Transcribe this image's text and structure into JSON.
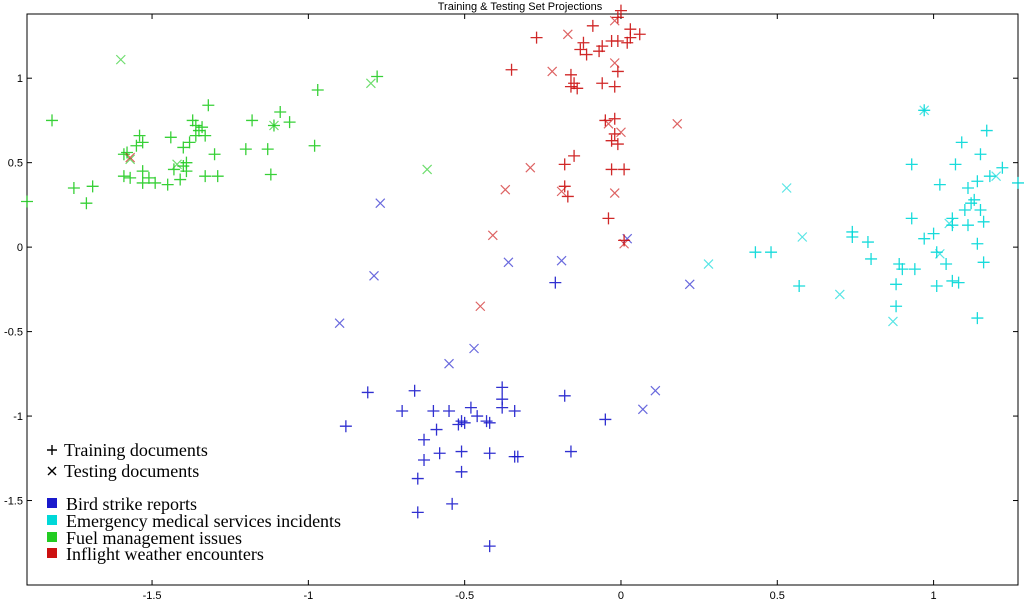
{
  "chart_data": {
    "type": "scatter",
    "title": "Training & Testing Set Projections",
    "xlim": [
      -1.9,
      1.27
    ],
    "ylim": [
      -2.0,
      1.38
    ],
    "grid": false,
    "xticks": [
      -1.5,
      -1,
      -0.5,
      0,
      0.5,
      1
    ],
    "xtick_labels": [
      "-1.5",
      "-1",
      "-0.5",
      "0",
      "0.5",
      "1"
    ],
    "yticks": [
      -1.5,
      -1,
      -0.5,
      0,
      0.5,
      1
    ],
    "ytick_labels": [
      "-1.5",
      "-1",
      "-0.5",
      "0",
      "0.5",
      "1"
    ],
    "marker_legend": [
      {
        "marker": "+",
        "label": "Training documents"
      },
      {
        "marker": "x",
        "label": "Testing documents"
      }
    ],
    "legend_placement": "bottom-left",
    "series": [
      {
        "name": "Bird strike reports",
        "color": "#1a1acc",
        "training": [
          [
            -0.42,
            -1.77
          ],
          [
            -0.65,
            -1.57
          ],
          [
            -0.54,
            -1.52
          ],
          [
            -0.65,
            -1.37
          ],
          [
            -0.51,
            -1.33
          ],
          [
            -0.63,
            -1.26
          ],
          [
            -0.58,
            -1.22
          ],
          [
            -0.51,
            -1.21
          ],
          [
            -0.42,
            -1.22
          ],
          [
            -0.33,
            -1.24
          ],
          [
            -0.34,
            -1.24
          ],
          [
            -0.16,
            -1.21
          ],
          [
            -0.63,
            -1.14
          ],
          [
            -0.59,
            -1.08
          ],
          [
            -0.52,
            -1.05
          ],
          [
            -0.5,
            -1.04
          ],
          [
            -0.43,
            -1.03
          ],
          [
            -0.88,
            -1.06
          ],
          [
            -0.7,
            -0.97
          ],
          [
            -0.6,
            -0.97
          ],
          [
            -0.55,
            -0.97
          ],
          [
            -0.48,
            -0.95
          ],
          [
            -0.38,
            -0.95
          ],
          [
            -0.34,
            -0.97
          ],
          [
            -0.18,
            -0.88
          ],
          [
            -0.05,
            -1.02
          ],
          [
            -0.81,
            -0.86
          ],
          [
            -0.66,
            -0.85
          ],
          [
            -0.38,
            -0.83
          ],
          [
            -0.38,
            -0.9
          ],
          [
            -0.21,
            -0.21
          ],
          [
            -0.51,
            -1.03
          ],
          [
            -0.42,
            -1.04
          ],
          [
            -0.46,
            -1.0
          ]
        ],
        "testing": [
          [
            -0.9,
            -0.45
          ],
          [
            -0.79,
            -0.17
          ],
          [
            -0.77,
            0.26
          ],
          [
            -0.55,
            -0.69
          ],
          [
            -0.47,
            -0.6
          ],
          [
            0.07,
            -0.96
          ],
          [
            0.11,
            -0.85
          ],
          [
            0.22,
            -0.22
          ],
          [
            0.02,
            0.05
          ],
          [
            -0.19,
            -0.08
          ],
          [
            -0.36,
            -0.09
          ]
        ]
      },
      {
        "name": "Emergency medical services incidents",
        "color": "#00d8d8",
        "training": [
          [
            0.97,
            0.81
          ],
          [
            1.09,
            0.62
          ],
          [
            1.17,
            0.69
          ],
          [
            1.15,
            0.55
          ],
          [
            1.22,
            0.47
          ],
          [
            1.27,
            0.38
          ],
          [
            1.3,
            0.28
          ],
          [
            0.93,
            0.49
          ],
          [
            1.07,
            0.49
          ],
          [
            1.02,
            0.37
          ],
          [
            1.14,
            0.39
          ],
          [
            1.18,
            0.42
          ],
          [
            1.11,
            0.35
          ],
          [
            1.12,
            0.26
          ],
          [
            1.15,
            0.22
          ],
          [
            1.16,
            0.15
          ],
          [
            1.13,
            0.28
          ],
          [
            1.1,
            0.22
          ],
          [
            1.06,
            0.17
          ],
          [
            1.06,
            0.13
          ],
          [
            1.11,
            0.13
          ],
          [
            0.93,
            0.17
          ],
          [
            0.97,
            0.05
          ],
          [
            1.0,
            0.08
          ],
          [
            1.04,
            -0.1
          ],
          [
            1.01,
            -0.03
          ],
          [
            1.06,
            -0.2
          ],
          [
            1.08,
            -0.21
          ],
          [
            1.14,
            0.02
          ],
          [
            1.16,
            -0.09
          ],
          [
            0.89,
            -0.1
          ],
          [
            0.9,
            -0.13
          ],
          [
            0.94,
            -0.13
          ],
          [
            0.88,
            -0.22
          ],
          [
            1.01,
            -0.23
          ],
          [
            0.88,
            -0.35
          ],
          [
            1.14,
            -0.42
          ],
          [
            0.79,
            0.03
          ],
          [
            0.74,
            0.06
          ],
          [
            0.74,
            0.09
          ],
          [
            0.8,
            -0.07
          ],
          [
            0.57,
            -0.23
          ],
          [
            0.48,
            -0.03
          ],
          [
            0.43,
            -0.03
          ]
        ],
        "testing": [
          [
            0.97,
            0.81
          ],
          [
            0.53,
            0.35
          ],
          [
            0.58,
            0.06
          ],
          [
            0.28,
            -0.1
          ],
          [
            0.7,
            -0.28
          ],
          [
            0.87,
            -0.44
          ],
          [
            1.02,
            -0.04
          ],
          [
            1.05,
            0.14
          ],
          [
            1.2,
            0.42
          ]
        ]
      },
      {
        "name": "Fuel management issues",
        "color": "#22cc22",
        "training": [
          [
            -1.82,
            0.75
          ],
          [
            -1.9,
            0.27
          ],
          [
            -1.75,
            0.35
          ],
          [
            -1.69,
            0.36
          ],
          [
            -1.71,
            0.26
          ],
          [
            -1.59,
            0.42
          ],
          [
            -1.58,
            0.56
          ],
          [
            -1.55,
            0.6
          ],
          [
            -1.54,
            0.66
          ],
          [
            -1.53,
            0.62
          ],
          [
            -1.57,
            0.41
          ],
          [
            -1.53,
            0.38
          ],
          [
            -1.49,
            0.38
          ],
          [
            -1.53,
            0.45
          ],
          [
            -1.51,
            0.41
          ],
          [
            -1.45,
            0.37
          ],
          [
            -1.44,
            0.65
          ],
          [
            -1.43,
            0.46
          ],
          [
            -1.4,
            0.48
          ],
          [
            -1.4,
            0.59
          ],
          [
            -1.39,
            0.5
          ],
          [
            -1.39,
            0.45
          ],
          [
            -1.41,
            0.4
          ],
          [
            -1.38,
            0.62
          ],
          [
            -1.37,
            0.75
          ],
          [
            -1.36,
            0.72
          ],
          [
            -1.36,
            0.66
          ],
          [
            -1.35,
            0.69
          ],
          [
            -1.34,
            0.71
          ],
          [
            -1.33,
            0.66
          ],
          [
            -1.32,
            0.84
          ],
          [
            -1.3,
            0.55
          ],
          [
            -1.33,
            0.42
          ],
          [
            -1.29,
            0.42
          ],
          [
            -1.2,
            0.58
          ],
          [
            -1.18,
            0.75
          ],
          [
            -1.13,
            0.58
          ],
          [
            -1.12,
            0.43
          ],
          [
            -1.11,
            0.72
          ],
          [
            -1.09,
            0.8
          ],
          [
            -1.06,
            0.74
          ],
          [
            -0.98,
            0.6
          ],
          [
            -0.97,
            0.93
          ],
          [
            -0.78,
            1.01
          ],
          [
            -1.59,
            0.55
          ]
        ],
        "testing": [
          [
            -1.6,
            1.11
          ],
          [
            -0.8,
            0.97
          ],
          [
            -0.62,
            0.46
          ],
          [
            -1.57,
            0.52
          ],
          [
            -1.42,
            0.49
          ],
          [
            -1.11,
            0.72
          ]
        ]
      },
      {
        "name": "Inflight weather encounters",
        "color": "#cc1111",
        "training": [
          [
            0.0,
            1.4
          ],
          [
            -0.01,
            1.36
          ],
          [
            -0.09,
            1.31
          ],
          [
            -0.03,
            1.22
          ],
          [
            -0.12,
            1.21
          ],
          [
            -0.13,
            1.17
          ],
          [
            -0.11,
            1.14
          ],
          [
            0.03,
            1.29
          ],
          [
            0.06,
            1.26
          ],
          [
            0.02,
            1.21
          ],
          [
            0.03,
            1.24
          ],
          [
            -0.27,
            1.24
          ],
          [
            -0.07,
            1.16
          ],
          [
            -0.06,
            1.19
          ],
          [
            -0.01,
            1.22
          ],
          [
            -0.35,
            1.05
          ],
          [
            -0.16,
            1.02
          ],
          [
            -0.15,
            0.97
          ],
          [
            -0.14,
            0.94
          ],
          [
            -0.16,
            0.95
          ],
          [
            -0.06,
            0.97
          ],
          [
            -0.02,
            0.95
          ],
          [
            -0.01,
            1.04
          ],
          [
            -0.05,
            0.75
          ],
          [
            -0.02,
            0.76
          ],
          [
            -0.03,
            0.63
          ],
          [
            -0.01,
            0.61
          ],
          [
            -0.03,
            0.46
          ],
          [
            0.01,
            0.46
          ],
          [
            -0.15,
            0.54
          ],
          [
            -0.18,
            0.49
          ],
          [
            -0.17,
            0.3
          ],
          [
            -0.18,
            0.36
          ],
          [
            -0.04,
            0.17
          ],
          [
            0.01,
            0.04
          ],
          [
            -0.02,
            0.67
          ]
        ],
        "testing": [
          [
            -0.02,
            1.34
          ],
          [
            -0.17,
            1.26
          ],
          [
            -0.22,
            1.04
          ],
          [
            -0.02,
            1.09
          ],
          [
            0.18,
            0.73
          ],
          [
            0.0,
            0.68
          ],
          [
            -0.04,
            0.73
          ],
          [
            -0.29,
            0.47
          ],
          [
            -0.37,
            0.34
          ],
          [
            -0.19,
            0.33
          ],
          [
            -0.02,
            0.32
          ],
          [
            -0.41,
            0.07
          ],
          [
            -0.45,
            -0.35
          ],
          [
            0.01,
            0.02
          ],
          [
            -1.57,
            0.53
          ]
        ]
      }
    ]
  }
}
